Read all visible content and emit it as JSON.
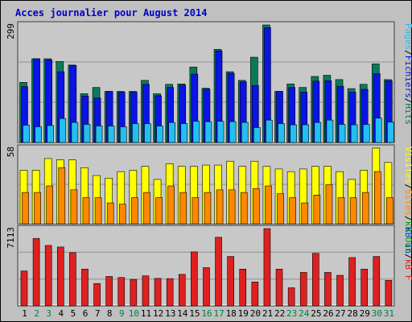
{
  "title": "Acces journalier pour August 2014",
  "colors": {
    "frame": "#c0c0c0",
    "panel": "#c8c8c8",
    "grid": "#909090",
    "title": "#0000cc",
    "hits": "#0b7a5a",
    "files": "#0a14e6",
    "pages": "#22bff2",
    "visits": "#ffff00",
    "sites": "#ff8800",
    "kbin": "#0044cc",
    "kbout": "#00a000",
    "kbf": "#e02020",
    "xlabel_weekday": "#000000",
    "xlabel_weekend": "#008040"
  },
  "chart_data": [
    {
      "type": "bar",
      "title": "Acces journalier pour August 2014",
      "categories": [
        "1",
        "2",
        "3",
        "4",
        "5",
        "6",
        "7",
        "8",
        "9",
        "10",
        "11",
        "12",
        "13",
        "14",
        "15",
        "16",
        "17",
        "18",
        "19",
        "20",
        "21",
        "22",
        "23",
        "24",
        "25",
        "26",
        "27",
        "28",
        "29",
        "30",
        "31"
      ],
      "weekend_days": [
        "2",
        "3",
        "9",
        "10",
        "16",
        "17",
        "23",
        "24",
        "30",
        "31"
      ],
      "ymax_label": "299",
      "legend": [
        {
          "text": "Pages",
          "color": "#22bff2"
        },
        {
          "text": "/",
          "color": "#000000"
        },
        {
          "text": "Fichiers",
          "color": "#0a14e6"
        },
        {
          "text": "/",
          "color": "#000000"
        },
        {
          "text": "Hits",
          "color": "#0b7a5a"
        }
      ],
      "series": [
        {
          "name": "Hits",
          "values": [
            153,
            213,
            213,
            206,
            197,
            124,
            140,
            130,
            130,
            130,
            158,
            124,
            148,
            149,
            192,
            138,
            237,
            180,
            158,
            217,
            299,
            130,
            149,
            140,
            168,
            171,
            160,
            137,
            148,
            200,
            160
          ]
        },
        {
          "name": "Fichiers",
          "values": [
            142,
            213,
            210,
            180,
            196,
            118,
            113,
            130,
            128,
            128,
            148,
            119,
            140,
            146,
            174,
            136,
            233,
            176,
            154,
            145,
            292,
            130,
            140,
            128,
            156,
            157,
            143,
            128,
            135,
            175,
            157
          ]
        },
        {
          "name": "Pages",
          "values": [
            44,
            40,
            43,
            61,
            51,
            46,
            42,
            42,
            40,
            48,
            48,
            42,
            51,
            48,
            54,
            53,
            54,
            53,
            51,
            38,
            57,
            48,
            45,
            45,
            51,
            57,
            46,
            45,
            46,
            62,
            52
          ]
        }
      ]
    },
    {
      "type": "bar",
      "ymax_label": "58",
      "legend": [
        {
          "text": "Visites",
          "color": "#ffff00"
        },
        {
          "text": "/",
          "color": "#000000"
        },
        {
          "text": "Sites",
          "color": "#ff8800"
        },
        {
          "text": "/",
          "color": "#000000"
        },
        {
          "text": "kB Out",
          "color": "#00a000"
        }
      ],
      "series": [
        {
          "name": "Visites",
          "values": [
            41,
            41,
            50,
            49,
            49,
            43,
            37,
            35,
            40,
            41,
            44,
            34,
            46,
            44,
            44,
            45,
            45,
            48,
            44,
            48,
            44,
            42,
            40,
            42,
            44,
            44,
            40,
            34,
            41,
            58,
            47
          ]
        },
        {
          "name": "Sites",
          "values": [
            24,
            24,
            29,
            43,
            26,
            20,
            20,
            16,
            15,
            20,
            24,
            20,
            29,
            24,
            20,
            24,
            26,
            26,
            24,
            27,
            29,
            23,
            20,
            16,
            22,
            30,
            20,
            20,
            24,
            40,
            20
          ]
        }
      ]
    },
    {
      "type": "bar",
      "ymax_label": "7113",
      "legend": [
        {
          "text": "kB In",
          "color": "#0044cc"
        },
        {
          "text": "/",
          "color": "#000000"
        },
        {
          "text": "kB F",
          "color": "#e02020"
        }
      ],
      "series": [
        {
          "name": "kB F",
          "values": [
            3213,
            6213,
            5563,
            5420,
            4900,
            3387,
            2060,
            2710,
            2614,
            2436,
            2763,
            2533,
            2510,
            2900,
            4970,
            3520,
            6313,
            4550,
            3387,
            2200,
            7113,
            3387,
            1667,
            3080,
            4837,
            3080,
            2813,
            4450,
            3387,
            4550,
            2350
          ]
        }
      ]
    }
  ]
}
